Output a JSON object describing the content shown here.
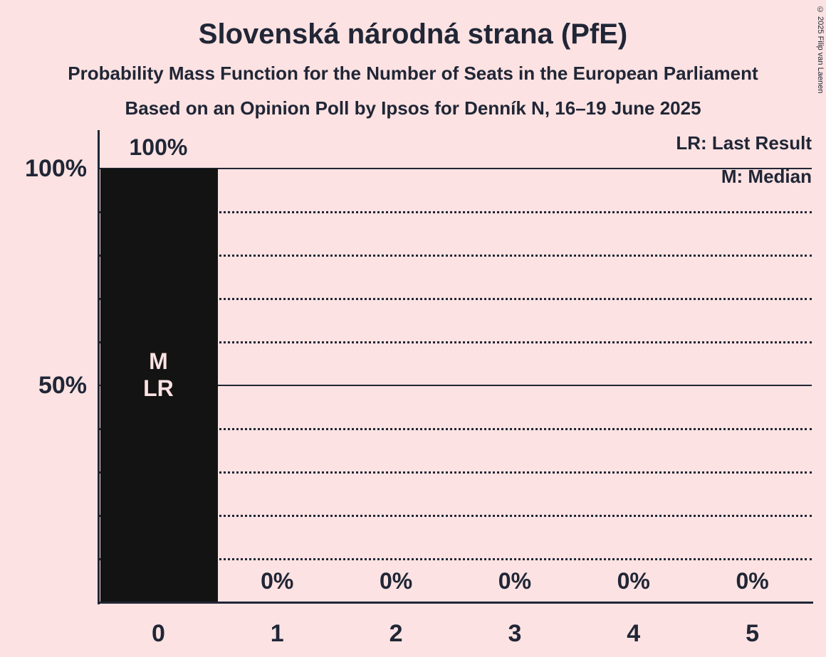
{
  "title": "Slovenská národná strana (PfE)",
  "subtitle": "Probability Mass Function for the Number of Seats in the European Parliament",
  "poll_line": "Based on an Opinion Poll by Ipsos for Denník N, 16–19 June 2025",
  "legend": {
    "lr": "LR: Last Result",
    "m": "M: Median"
  },
  "copyright": "© 2025 Filip van Laenen",
  "colors": {
    "background": "#fce2e2",
    "bar": "#131313",
    "text": "#202636"
  },
  "chart_data": {
    "type": "bar",
    "title": "Slovenská národná strana (PfE)",
    "categories": [
      "0",
      "1",
      "2",
      "3",
      "4",
      "5"
    ],
    "values": [
      100,
      0,
      0,
      0,
      0,
      0
    ],
    "value_labels": [
      "100%",
      "0%",
      "0%",
      "0%",
      "0%",
      "0%"
    ],
    "annotations": [
      {
        "category": "0",
        "lines": [
          "M",
          "LR"
        ]
      }
    ],
    "xlabel": "",
    "ylabel": "",
    "ylim": [
      0,
      100
    ],
    "y_ticks": [
      {
        "label": "100%",
        "value": 100
      },
      {
        "label": "50%",
        "value": 50
      }
    ],
    "gridlines": {
      "solid": [
        100,
        50
      ],
      "dotted": [
        90,
        80,
        70,
        60,
        40,
        30,
        20,
        10
      ]
    },
    "legend_position": "top-right"
  }
}
